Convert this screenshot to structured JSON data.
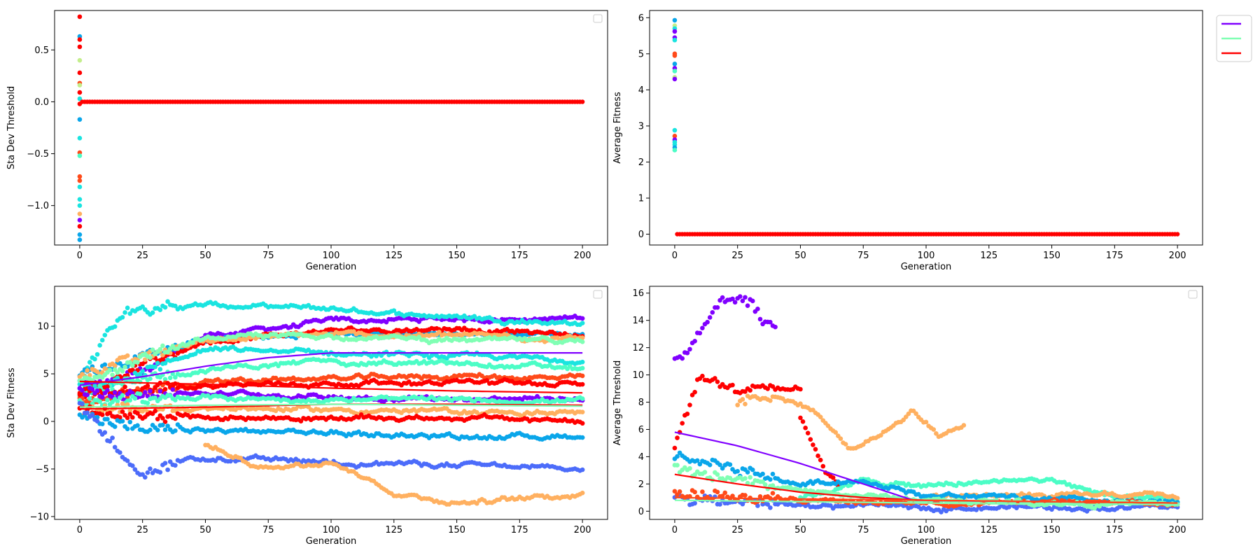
{
  "chart_data": [
    {
      "type": "scatter",
      "xlabel": "Generation",
      "ylabel": "Sta Dev Threshold",
      "xlim": [
        -10,
        210
      ],
      "ylim": [
        -1.38,
        0.88
      ],
      "xticks": [
        0,
        25,
        50,
        75,
        100,
        125,
        150,
        175,
        200
      ],
      "yticks": [
        -1.0,
        -0.5,
        0.0,
        0.5
      ],
      "ytick_labels": [
        "−1.0",
        "−0.5",
        "0.0",
        "0.5"
      ],
      "legend": "top-right (empty)",
      "grid": false,
      "series": [
        {
          "points": [
            [
              0,
              0.82
            ],
            [
              0,
              0.63
            ],
            [
              0,
              0.6
            ],
            [
              0,
              0.4
            ],
            [
              0,
              0.53
            ],
            [
              0,
              0.28
            ],
            [
              0,
              0.18
            ],
            [
              0,
              0.16
            ],
            [
              0,
              0.09
            ],
            [
              0,
              0.03
            ],
            [
              0,
              -0.02
            ],
            [
              0,
              -0.17
            ],
            [
              0,
              -0.35
            ],
            [
              0,
              -0.49
            ],
            [
              0,
              -0.52
            ],
            [
              0,
              -0.72
            ],
            [
              0,
              -0.76
            ],
            [
              0,
              -0.82
            ],
            [
              0,
              -0.94
            ],
            [
              0,
              -1.0
            ],
            [
              0,
              -1.08
            ],
            [
              0,
              -1.14
            ],
            [
              0,
              -1.2
            ],
            [
              0,
              -1.28
            ],
            [
              0,
              -1.33
            ]
          ],
          "note_constant_after_gen0": 0.0
        }
      ]
    },
    {
      "type": "scatter",
      "xlabel": "Generation",
      "ylabel": "Average Fitness",
      "xlim": [
        -10,
        210
      ],
      "ylim": [
        -0.3,
        6.2
      ],
      "xticks": [
        0,
        25,
        50,
        75,
        100,
        125,
        150,
        175,
        200
      ],
      "yticks": [
        0,
        1,
        2,
        3,
        4,
        5,
        6
      ],
      "legend": "outside right (three unlabeled lines: purple, green, red)",
      "legend_colors": [
        "#8000ff",
        "#80ffb4",
        "#ff0000"
      ],
      "grid": false,
      "series": [
        {
          "points": [
            [
              0,
              5.93
            ],
            [
              0,
              5.78
            ],
            [
              0,
              5.7
            ],
            [
              0,
              5.62
            ],
            [
              0,
              5.45
            ],
            [
              0,
              5.38
            ],
            [
              0,
              5.0
            ],
            [
              0,
              4.95
            ],
            [
              0,
              4.72
            ],
            [
              0,
              4.6
            ],
            [
              0,
              4.52
            ],
            [
              0,
              4.35
            ],
            [
              0,
              4.3
            ],
            [
              0,
              2.88
            ],
            [
              0,
              2.72
            ],
            [
              0,
              2.62
            ],
            [
              0,
              2.55
            ],
            [
              0,
              2.48
            ],
            [
              0,
              2.4
            ],
            [
              0,
              2.33
            ]
          ],
          "note_constant_after_gen0": 0.0
        }
      ]
    },
    {
      "type": "scatter",
      "xlabel": "Generation",
      "ylabel": "Sta Dev Fitness",
      "xlim": [
        -10,
        210
      ],
      "ylim": [
        -10.3,
        14.2
      ],
      "xticks": [
        0,
        25,
        50,
        75,
        100,
        125,
        150,
        175,
        200
      ],
      "yticks": [
        -10,
        -5,
        0,
        5,
        10
      ],
      "ytick_labels": [
        "−10",
        "−5",
        "0",
        "5",
        "10"
      ],
      "legend": "top-right (empty)",
      "grid": false,
      "series": [
        {
          "color": "#8000ff",
          "x": [
            0,
            25,
            50,
            100,
            150,
            200
          ],
          "y": [
            4,
            5,
            9,
            10.5,
            10.8,
            10.8
          ]
        },
        {
          "color": "#1ae4e0",
          "x": [
            0,
            10,
            20,
            50,
            100,
            150,
            200
          ],
          "y": [
            4,
            9,
            12,
            12.2,
            11.8,
            11.0,
            10.3
          ]
        },
        {
          "color": "#0aa6ea",
          "x": [
            0,
            50,
            100,
            150,
            200
          ],
          "y": [
            5,
            8.5,
            9.2,
            9.3,
            9.2
          ]
        },
        {
          "color": "#ff0000",
          "x": [
            0,
            50,
            100,
            150,
            200
          ],
          "y": [
            3,
            8.5,
            9.5,
            9.8,
            9.0
          ]
        },
        {
          "color": "#ffb060",
          "x": [
            0,
            50,
            100,
            150,
            200
          ],
          "y": [
            5,
            8.6,
            9.1,
            9.0,
            8.8
          ]
        },
        {
          "color": "#80ffb4",
          "x": [
            0,
            50,
            100,
            150,
            200
          ],
          "y": [
            4,
            8.8,
            9.0,
            8.5,
            8.4
          ]
        },
        {
          "color": "#1ae4e0",
          "x": [
            0,
            50,
            100,
            150,
            200
          ],
          "y": [
            3,
            7.5,
            7.2,
            6.8,
            6.5
          ]
        },
        {
          "color": "#4cfdc6",
          "x": [
            0,
            50,
            100,
            150,
            200
          ],
          "y": [
            3,
            5.5,
            6.3,
            6.0,
            5.6
          ]
        },
        {
          "color": "#ff4a1a",
          "x": [
            0,
            50,
            100,
            150,
            200
          ],
          "y": [
            2,
            4.2,
            4.5,
            4.8,
            4.5
          ]
        },
        {
          "color": "#ff0000",
          "x": [
            0,
            50,
            100,
            150,
            200
          ],
          "y": [
            3,
            3.8,
            4.0,
            4.2,
            3.8
          ]
        },
        {
          "color": "#8000ff",
          "x": [
            0,
            50,
            100,
            150,
            200
          ],
          "y": [
            3,
            3.0,
            2.6,
            2.4,
            2.3
          ]
        },
        {
          "color": "#4cfdc6",
          "x": [
            0,
            50,
            100,
            150,
            200
          ],
          "y": [
            2,
            2.5,
            2.3,
            2.2,
            2.2
          ]
        },
        {
          "color": "#ffb060",
          "x": [
            0,
            50,
            100,
            150,
            200
          ],
          "y": [
            1,
            1.5,
            1.2,
            1.0,
            0.9
          ]
        },
        {
          "color": "#ff0000",
          "x": [
            0,
            50,
            100,
            150,
            200
          ],
          "y": [
            1,
            0.5,
            0.3,
            0.4,
            0.0
          ]
        },
        {
          "color": "#0aa6ea",
          "x": [
            0,
            25,
            50,
            100,
            150,
            200
          ],
          "y": [
            1,
            -1,
            -1.0,
            -1.2,
            -1.6,
            -1.5
          ]
        },
        {
          "color": "#4c6cfa",
          "x": [
            0,
            25,
            45,
            100,
            150,
            200
          ],
          "y": [
            2,
            -6,
            -4.0,
            -4.2,
            -4.6,
            -5.1
          ]
        },
        {
          "color": "#ffb060",
          "x": [
            50,
            75,
            100,
            125,
            150,
            175,
            200
          ],
          "y": [
            -2.5,
            -5,
            -4,
            -7.5,
            -8.5,
            -8.2,
            -7.6
          ]
        }
      ],
      "trend_lines": [
        {
          "color": "#8000ff",
          "x": [
            0,
            25,
            50,
            75,
            100,
            150,
            200
          ],
          "y": [
            3.8,
            4.7,
            5.8,
            6.7,
            7.2,
            7.2,
            7.2
          ]
        },
        {
          "color": "#ff0000",
          "x": [
            0,
            50,
            100,
            150,
            200
          ],
          "y": [
            4.2,
            3.9,
            3.5,
            3.2,
            3.0
          ]
        },
        {
          "color": "#ff0000",
          "x": [
            0,
            50,
            100,
            150,
            200
          ],
          "y": [
            1.3,
            1.5,
            1.8,
            1.8,
            1.7
          ]
        },
        {
          "color": "#80ffb4",
          "x": [
            0,
            50,
            100,
            150,
            200
          ],
          "y": [
            1.5,
            1.7,
            1.8,
            1.7,
            1.6
          ]
        }
      ]
    },
    {
      "type": "scatter",
      "xlabel": "Generation",
      "ylabel": "Average Threshold",
      "xlim": [
        -10,
        210
      ],
      "ylim": [
        -0.6,
        16.5
      ],
      "xticks": [
        0,
        25,
        50,
        75,
        100,
        125,
        150,
        175,
        200
      ],
      "yticks": [
        0,
        2,
        4,
        6,
        8,
        10,
        12,
        14,
        16
      ],
      "legend": "top-right (empty)",
      "grid": false,
      "series": [
        {
          "color": "#8000ff",
          "x": [
            0,
            5,
            12,
            18,
            25,
            30,
            35,
            40
          ],
          "y": [
            11,
            12,
            14,
            15.5,
            15.7,
            15.6,
            14,
            13.5
          ]
        },
        {
          "color": "#ff0000",
          "x": [
            0,
            10,
            18,
            25,
            35,
            50
          ],
          "y": [
            5,
            10,
            9.5,
            9,
            9,
            9
          ]
        },
        {
          "color": "#ffb060",
          "x": [
            25,
            40,
            55,
            70,
            85,
            95,
            105,
            115
          ],
          "y": [
            8,
            8.5,
            7.5,
            4.5,
            6,
            7.5,
            5.5,
            6.5
          ]
        },
        {
          "color": "#ff0000",
          "x": [
            50,
            55,
            60,
            65
          ],
          "y": [
            7,
            5,
            3,
            2
          ]
        },
        {
          "color": "#4cfdc6",
          "x": [
            50,
            75,
            100,
            125,
            150,
            175,
            200
          ],
          "y": [
            1.0,
            2.2,
            1.8,
            2.2,
            2.3,
            1.0,
            0.7
          ]
        },
        {
          "color": "#ffb060",
          "x": [
            100,
            125,
            150,
            175,
            200
          ],
          "y": [
            1.0,
            1.2,
            1.0,
            1.2,
            1.0
          ]
        },
        {
          "color": "#0aa6ea",
          "x": [
            0,
            25,
            50,
            75,
            100,
            150,
            200
          ],
          "y": [
            4,
            3,
            2,
            2.3,
            1.2,
            0.8,
            0.5
          ]
        },
        {
          "color": "#4c6cfa",
          "x": [
            0,
            50,
            100,
            150,
            200
          ],
          "y": [
            1,
            0.4,
            0.3,
            0.3,
            0.3
          ]
        },
        {
          "color": "#ff4a1a",
          "x": [
            0,
            50,
            100,
            150,
            200
          ],
          "y": [
            1.3,
            0.8,
            0.6,
            0.6,
            0.6
          ]
        },
        {
          "color": "#80ffb4",
          "x": [
            0,
            50,
            100,
            150,
            200
          ],
          "y": [
            3,
            1.5,
            0.8,
            0.6,
            0.5
          ]
        }
      ],
      "trend_lines": [
        {
          "color": "#8000ff",
          "x": [
            0,
            25,
            50,
            75,
            95,
            150,
            200
          ],
          "y": [
            5.8,
            4.8,
            3.5,
            2.0,
            0.8,
            0.7,
            0.6
          ]
        },
        {
          "color": "#ff0000",
          "x": [
            0,
            25,
            50,
            75,
            100,
            150,
            200
          ],
          "y": [
            2.7,
            2.0,
            1.4,
            1.0,
            0.8,
            0.7,
            0.6
          ]
        },
        {
          "color": "#80ffb4",
          "x": [
            0,
            50,
            100,
            150,
            200
          ],
          "y": [
            0.8,
            0.7,
            0.6,
            0.5,
            0.5
          ]
        },
        {
          "color": "#ff4a1a",
          "x": [
            0,
            50,
            100,
            150,
            200
          ],
          "y": [
            1.0,
            0.9,
            0.8,
            0.7,
            0.6
          ]
        }
      ]
    }
  ]
}
